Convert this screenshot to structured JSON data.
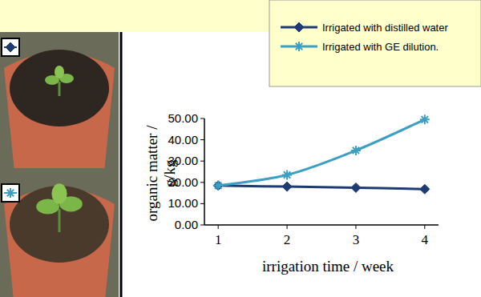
{
  "chart_data": {
    "type": "line",
    "x_label": "irrigation time / week",
    "y_label": "organic matter / g/kg",
    "x": [
      1,
      2,
      3,
      4
    ],
    "xlim": [
      0.8,
      4.2
    ],
    "xticks": [
      1,
      2,
      3,
      4
    ],
    "ylim": [
      0,
      50
    ],
    "yticks": [
      {
        "value": 0,
        "label": "0.00"
      },
      {
        "value": 10,
        "label": "10.00"
      },
      {
        "value": 20,
        "label": "20.00"
      },
      {
        "value": 30,
        "label": "30.00"
      },
      {
        "value": 40,
        "label": "40.00"
      },
      {
        "value": 50,
        "label": "50.00"
      }
    ],
    "grid": false,
    "legend": "top-right",
    "series": [
      {
        "name": "Irrigated with distilled water",
        "color": "#1f3b73",
        "marker": "diamond",
        "line_style": "solid",
        "values": [
          18.5,
          18.0,
          17.5,
          16.8
        ]
      },
      {
        "name": "Irrigated with GE dilution.",
        "color": "#3d9fc4",
        "marker": "asterisk",
        "line_style": "solid",
        "values": [
          18.5,
          23.5,
          35.0,
          49.5
        ]
      }
    ]
  }
}
